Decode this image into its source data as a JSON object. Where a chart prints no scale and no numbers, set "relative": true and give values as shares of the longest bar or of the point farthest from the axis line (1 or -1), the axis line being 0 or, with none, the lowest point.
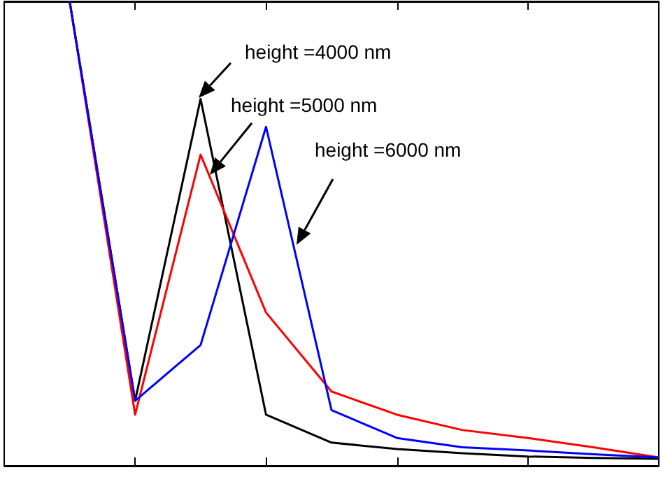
{
  "chart_data": {
    "type": "line",
    "relative": true,
    "categories": [
      null,
      null,
      null,
      null,
      null,
      null,
      null,
      null,
      null,
      null,
      null
    ],
    "series": [
      {
        "color": "#000000",
        "values": [
          null,
          1,
          0.14,
          0.79,
          0.11,
          0.05,
          0.036,
          0.027,
          0.02,
          0.017,
          0.015
        ]
      },
      {
        "color": "#ff0000",
        "values": [
          null,
          1,
          0.11,
          0.67,
          0.33,
          0.16,
          0.11,
          0.077,
          0.06,
          0.04,
          0.018
        ]
      },
      {
        "color": "#0000ff",
        "values": [
          null,
          1,
          0.14,
          0.26,
          0.73,
          0.12,
          0.06,
          0.04,
          0.033,
          0.025,
          0.018
        ]
      }
    ],
    "annotations": [
      "height =4000 nm",
      "height =5000 nm",
      "height =6000 nm"
    ],
    "grid": false,
    "marker": "none",
    "line_style": "solid"
  }
}
